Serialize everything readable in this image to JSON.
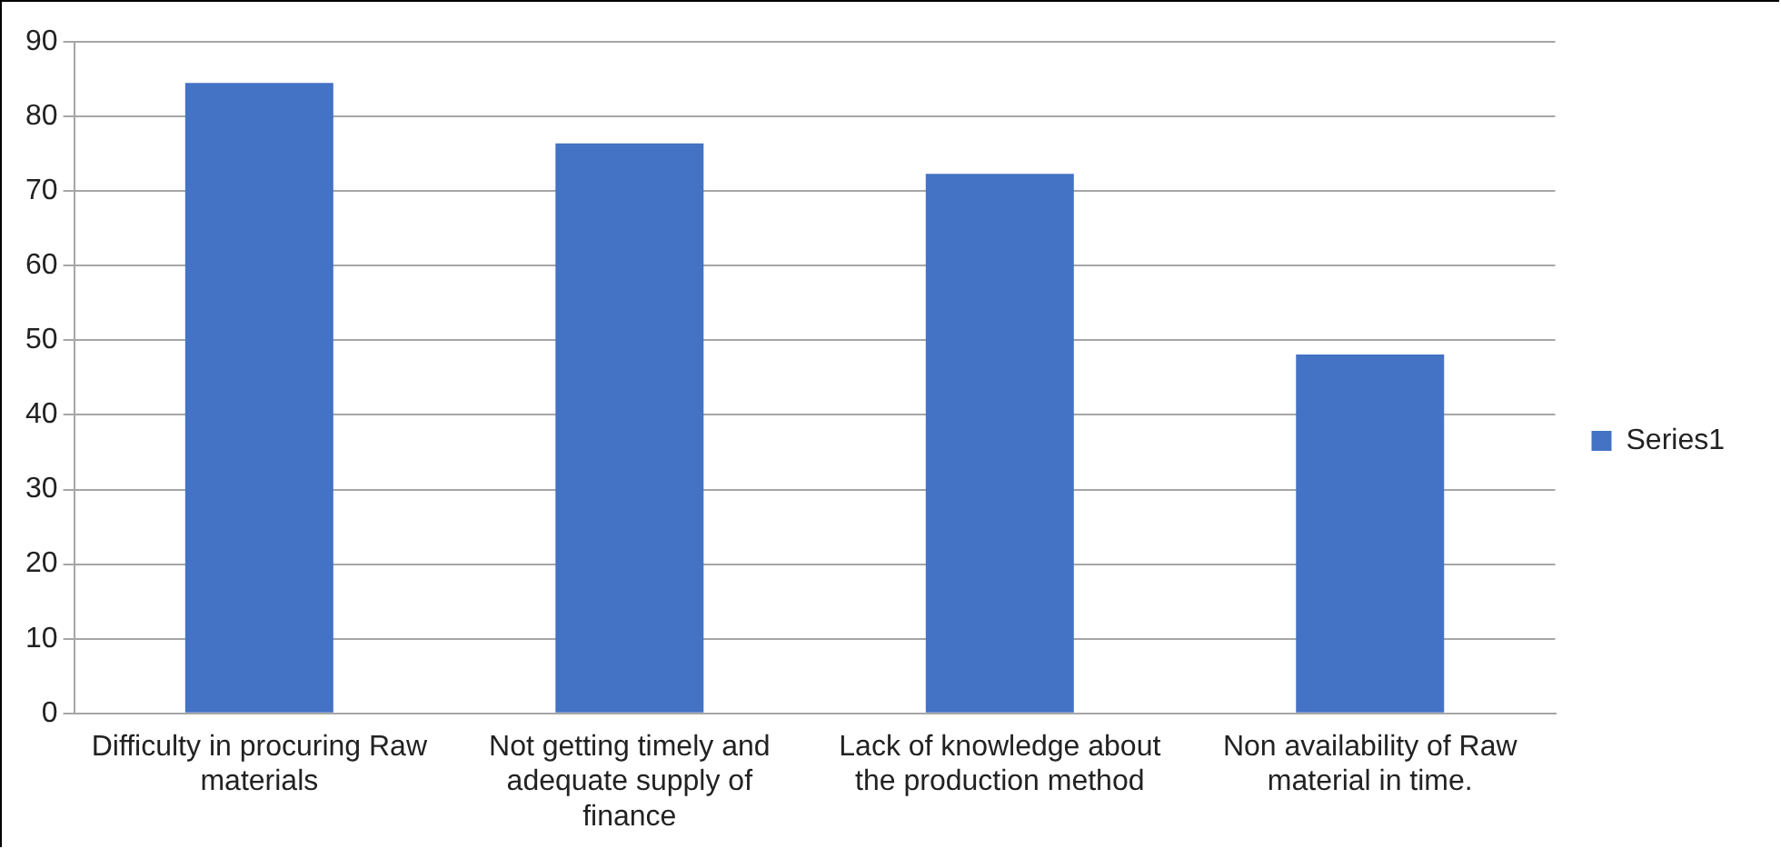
{
  "chart_data": {
    "type": "bar",
    "categories": [
      "Difficulty in procuring Raw materials",
      "Not getting timely and adequate supply of finance",
      "Lack of knowledge about the production method",
      "Non availability of Raw material in time."
    ],
    "series": [
      {
        "name": "Series1",
        "color": "#4472c4",
        "values": [
          84.5,
          76.4,
          72.3,
          48.1
        ]
      }
    ],
    "ylim": [
      0,
      90
    ],
    "yticks": [
      0,
      10,
      20,
      30,
      40,
      50,
      60,
      70,
      80,
      90
    ],
    "grid": "y",
    "legend": "right"
  }
}
